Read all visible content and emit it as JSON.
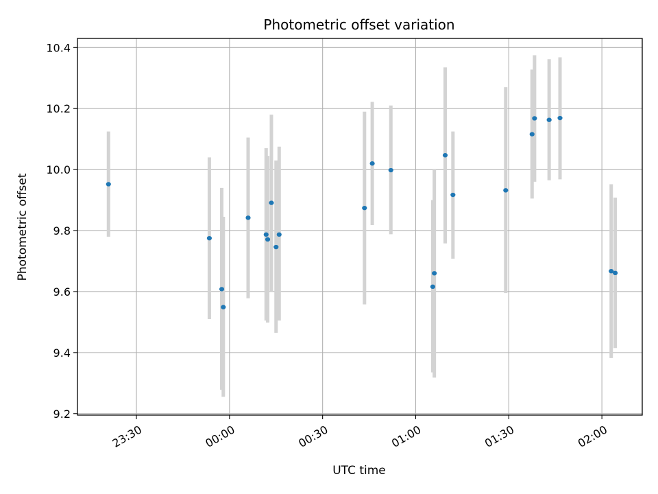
{
  "chart_data": {
    "type": "scatter",
    "title": "Photometric offset variation",
    "xlabel": "UTC time",
    "ylabel": "Photometric offset",
    "x_ticks": [
      "23:30",
      "00:00",
      "00:30",
      "01:00",
      "01:30",
      "02:00"
    ],
    "y_ticks": [
      "9.2",
      "9.4",
      "9.6",
      "9.8",
      "10.0",
      "10.2",
      "10.4"
    ],
    "xlim": [
      "23:11",
      "02:13"
    ],
    "ylim": [
      9.195,
      10.43
    ],
    "grid": true,
    "point_color": "#1f77b4",
    "errorbar_color": "#d3d3d3",
    "points": [
      {
        "time": "23:21",
        "y": 9.952,
        "err_low": 9.78,
        "err_high": 10.125
      },
      {
        "time": "23:53.5",
        "y": 9.775,
        "err_low": 9.51,
        "err_high": 10.04
      },
      {
        "time": "23:57.5",
        "y": 9.608,
        "err_low": 9.278,
        "err_high": 9.94
      },
      {
        "time": "23:58",
        "y": 9.549,
        "err_low": 9.255,
        "err_high": 9.845
      },
      {
        "time": "00:06",
        "y": 9.842,
        "err_low": 9.578,
        "err_high": 10.105
      },
      {
        "time": "00:11.8",
        "y": 9.787,
        "err_low": 9.505,
        "err_high": 10.07
      },
      {
        "time": "00:12.3",
        "y": 9.771,
        "err_low": 9.498,
        "err_high": 10.045
      },
      {
        "time": "00:13.5",
        "y": 9.891,
        "err_low": 9.6,
        "err_high": 10.18
      },
      {
        "time": "00:15",
        "y": 9.746,
        "err_low": 9.465,
        "err_high": 10.03
      },
      {
        "time": "00:16",
        "y": 9.787,
        "err_low": 9.505,
        "err_high": 10.075
      },
      {
        "time": "00:43.5",
        "y": 9.874,
        "err_low": 9.558,
        "err_high": 10.19
      },
      {
        "time": "00:46",
        "y": 10.02,
        "err_low": 9.818,
        "err_high": 10.222
      },
      {
        "time": "00:52",
        "y": 9.998,
        "err_low": 9.788,
        "err_high": 10.21
      },
      {
        "time": "01:05.5",
        "y": 9.616,
        "err_low": 9.335,
        "err_high": 9.9
      },
      {
        "time": "01:06",
        "y": 9.66,
        "err_low": 9.318,
        "err_high": 10.0
      },
      {
        "time": "01:09.5",
        "y": 10.047,
        "err_low": 9.758,
        "err_high": 10.335
      },
      {
        "time": "01:12",
        "y": 9.917,
        "err_low": 9.708,
        "err_high": 10.125
      },
      {
        "time": "01:29",
        "y": 9.932,
        "err_low": 9.595,
        "err_high": 10.27
      },
      {
        "time": "01:37.5",
        "y": 10.116,
        "err_low": 9.905,
        "err_high": 10.328
      },
      {
        "time": "01:38.3",
        "y": 10.168,
        "err_low": 9.96,
        "err_high": 10.375
      },
      {
        "time": "01:43",
        "y": 10.163,
        "err_low": 9.965,
        "err_high": 10.362
      },
      {
        "time": "01:46.5",
        "y": 10.169,
        "err_low": 9.968,
        "err_high": 10.368
      },
      {
        "time": "02:03",
        "y": 9.667,
        "err_low": 9.382,
        "err_high": 9.952
      },
      {
        "time": "02:04.3",
        "y": 9.661,
        "err_low": 9.415,
        "err_high": 9.908
      }
    ]
  }
}
